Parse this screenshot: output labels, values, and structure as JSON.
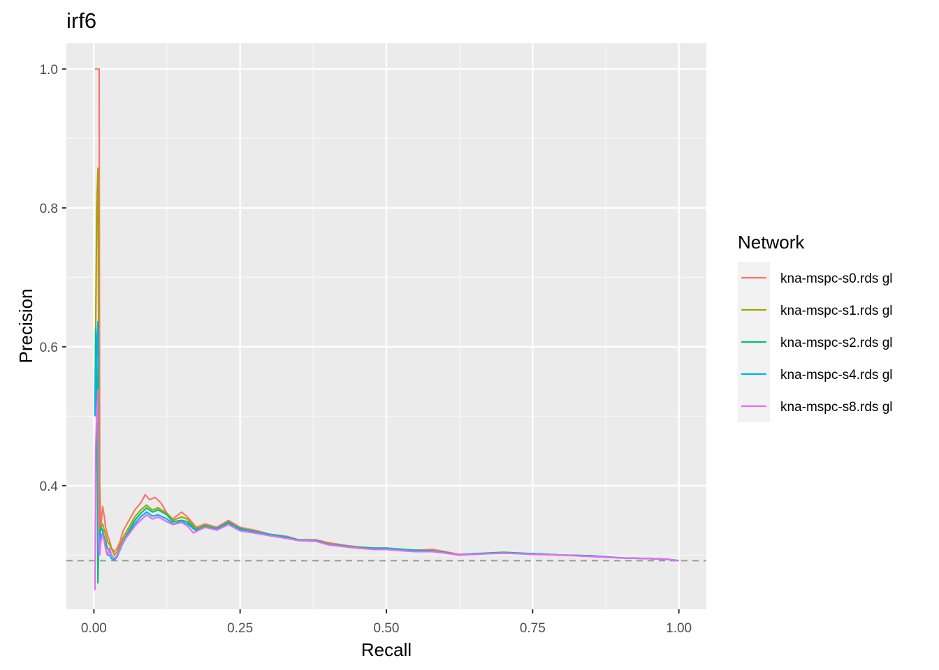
{
  "chart_data": {
    "type": "line",
    "title": "irf6",
    "xlabel": "Recall",
    "ylabel": "Precision",
    "xlim": [
      -0.047,
      1.047
    ],
    "ylim": [
      0.222,
      1.037
    ],
    "x_ticks": [
      0.0,
      0.25,
      0.5,
      0.75,
      1.0
    ],
    "x_tick_labels": [
      "0.00",
      "0.25",
      "0.50",
      "0.75",
      "1.00"
    ],
    "y_ticks": [
      0.4,
      0.6,
      0.8,
      1.0
    ],
    "y_tick_labels": [
      "0.4",
      "0.6",
      "0.8",
      "1.0"
    ],
    "grid": true,
    "legend": {
      "title": "Network",
      "position": "right"
    },
    "baseline": {
      "y": 0.292,
      "style": "dashed",
      "color": "#999999"
    },
    "series": [
      {
        "name": "kna-mspc-s0.rds gl",
        "color": "#F8766D",
        "x": [
          0.002,
          0.003,
          0.005,
          0.007,
          0.009,
          0.01,
          0.012,
          0.015,
          0.018,
          0.02,
          0.023,
          0.027,
          0.03,
          0.035,
          0.04,
          0.045,
          0.05,
          0.06,
          0.07,
          0.08,
          0.088,
          0.095,
          0.105,
          0.115,
          0.125,
          0.135,
          0.15,
          0.16,
          0.175,
          0.19,
          0.21,
          0.23,
          0.25,
          0.28,
          0.3,
          0.33,
          0.35,
          0.38,
          0.4,
          0.43,
          0.45,
          0.48,
          0.5,
          0.53,
          0.55,
          0.58,
          0.6,
          0.625,
          0.65,
          0.7,
          0.75,
          0.8,
          0.85,
          0.9,
          0.95,
          0.98,
          1.0
        ],
        "y": [
          1.0,
          1.0,
          1.0,
          1.0,
          1.0,
          0.4,
          0.34,
          0.37,
          0.355,
          0.34,
          0.33,
          0.32,
          0.31,
          0.305,
          0.31,
          0.32,
          0.335,
          0.35,
          0.365,
          0.375,
          0.387,
          0.38,
          0.383,
          0.375,
          0.36,
          0.352,
          0.362,
          0.355,
          0.34,
          0.345,
          0.34,
          0.35,
          0.34,
          0.335,
          0.33,
          0.327,
          0.322,
          0.322,
          0.318,
          0.314,
          0.312,
          0.31,
          0.31,
          0.308,
          0.307,
          0.308,
          0.305,
          0.301,
          0.302,
          0.303,
          0.302,
          0.3,
          0.299,
          0.296,
          0.295,
          0.294,
          0.292
        ]
      },
      {
        "name": "kna-mspc-s1.rds gl",
        "color": "#A3A500",
        "x": [
          0.002,
          0.003,
          0.005,
          0.007,
          0.008,
          0.01,
          0.012,
          0.015,
          0.018,
          0.02,
          0.023,
          0.027,
          0.03,
          0.035,
          0.04,
          0.045,
          0.05,
          0.06,
          0.07,
          0.08,
          0.09,
          0.1,
          0.11,
          0.125,
          0.135,
          0.15,
          0.16,
          0.175,
          0.19,
          0.21,
          0.23,
          0.25,
          0.28,
          0.3,
          0.33,
          0.35,
          0.38,
          0.4,
          0.43,
          0.45,
          0.48,
          0.5,
          0.53,
          0.55,
          0.58,
          0.6,
          0.625,
          0.65,
          0.7,
          0.75,
          0.8,
          0.85,
          0.9,
          0.95,
          0.98,
          1.0
        ],
        "y": [
          0.5,
          0.62,
          0.8,
          0.857,
          0.62,
          0.33,
          0.34,
          0.345,
          0.335,
          0.33,
          0.32,
          0.315,
          0.31,
          0.3,
          0.305,
          0.315,
          0.325,
          0.34,
          0.355,
          0.365,
          0.372,
          0.365,
          0.368,
          0.36,
          0.35,
          0.355,
          0.352,
          0.338,
          0.343,
          0.338,
          0.348,
          0.338,
          0.333,
          0.33,
          0.325,
          0.322,
          0.32,
          0.316,
          0.313,
          0.311,
          0.309,
          0.309,
          0.307,
          0.306,
          0.306,
          0.304,
          0.3,
          0.302,
          0.303,
          0.302,
          0.3,
          0.299,
          0.296,
          0.295,
          0.294,
          0.292
        ]
      },
      {
        "name": "kna-mspc-s2.rds gl",
        "color": "#00BF7D",
        "x": [
          0.002,
          0.003,
          0.005,
          0.007,
          0.008,
          0.01,
          0.012,
          0.015,
          0.018,
          0.02,
          0.023,
          0.027,
          0.03,
          0.035,
          0.04,
          0.045,
          0.05,
          0.06,
          0.07,
          0.08,
          0.09,
          0.1,
          0.11,
          0.125,
          0.135,
          0.15,
          0.16,
          0.175,
          0.19,
          0.21,
          0.23,
          0.25,
          0.28,
          0.3,
          0.33,
          0.35,
          0.38,
          0.4,
          0.43,
          0.45,
          0.48,
          0.5,
          0.53,
          0.55,
          0.58,
          0.6,
          0.625,
          0.65,
          0.7,
          0.75,
          0.8,
          0.85,
          0.9,
          0.95,
          0.98,
          1.0
        ],
        "y": [
          0.5,
          0.625,
          0.55,
          0.26,
          0.32,
          0.33,
          0.34,
          0.335,
          0.325,
          0.32,
          0.31,
          0.305,
          0.3,
          0.295,
          0.3,
          0.31,
          0.32,
          0.335,
          0.35,
          0.36,
          0.368,
          0.362,
          0.365,
          0.358,
          0.348,
          0.35,
          0.348,
          0.336,
          0.342,
          0.338,
          0.347,
          0.338,
          0.333,
          0.33,
          0.326,
          0.322,
          0.321,
          0.316,
          0.313,
          0.311,
          0.31,
          0.31,
          0.308,
          0.307,
          0.306,
          0.304,
          0.3,
          0.302,
          0.304,
          0.302,
          0.3,
          0.299,
          0.296,
          0.295,
          0.294,
          0.292
        ]
      },
      {
        "name": "kna-mspc-s4.rds gl",
        "color": "#00B0F6",
        "x": [
          0.002,
          0.003,
          0.005,
          0.007,
          0.008,
          0.01,
          0.012,
          0.015,
          0.018,
          0.02,
          0.023,
          0.027,
          0.03,
          0.035,
          0.04,
          0.045,
          0.05,
          0.06,
          0.07,
          0.08,
          0.09,
          0.1,
          0.11,
          0.125,
          0.135,
          0.15,
          0.16,
          0.175,
          0.19,
          0.21,
          0.23,
          0.25,
          0.28,
          0.3,
          0.33,
          0.35,
          0.38,
          0.4,
          0.43,
          0.45,
          0.48,
          0.5,
          0.53,
          0.55,
          0.58,
          0.6,
          0.625,
          0.65,
          0.7,
          0.75,
          0.8,
          0.85,
          0.9,
          0.95,
          0.98,
          1.0
        ],
        "y": [
          0.5,
          0.55,
          0.6,
          0.636,
          0.3,
          0.32,
          0.33,
          0.33,
          0.32,
          0.31,
          0.3,
          0.3,
          0.295,
          0.293,
          0.298,
          0.308,
          0.318,
          0.332,
          0.345,
          0.355,
          0.362,
          0.356,
          0.358,
          0.352,
          0.345,
          0.348,
          0.345,
          0.335,
          0.34,
          0.337,
          0.345,
          0.336,
          0.332,
          0.329,
          0.325,
          0.321,
          0.32,
          0.315,
          0.312,
          0.31,
          0.309,
          0.309,
          0.307,
          0.306,
          0.305,
          0.303,
          0.3,
          0.302,
          0.303,
          0.302,
          0.3,
          0.299,
          0.296,
          0.295,
          0.294,
          0.292
        ]
      },
      {
        "name": "kna-mspc-s8.rds gl",
        "color": "#E76BF3",
        "x": [
          0.002,
          0.003,
          0.005,
          0.007,
          0.008,
          0.01,
          0.012,
          0.015,
          0.018,
          0.02,
          0.023,
          0.027,
          0.03,
          0.035,
          0.04,
          0.045,
          0.05,
          0.06,
          0.07,
          0.08,
          0.09,
          0.1,
          0.11,
          0.125,
          0.135,
          0.15,
          0.16,
          0.17,
          0.19,
          0.21,
          0.23,
          0.25,
          0.28,
          0.3,
          0.33,
          0.35,
          0.38,
          0.4,
          0.43,
          0.45,
          0.48,
          0.5,
          0.53,
          0.55,
          0.58,
          0.6,
          0.625,
          0.65,
          0.7,
          0.75,
          0.8,
          0.85,
          0.9,
          0.95,
          0.98,
          1.0
        ],
        "y": [
          0.25,
          0.45,
          0.5,
          0.538,
          0.33,
          0.3,
          0.32,
          0.33,
          0.32,
          0.31,
          0.3,
          0.31,
          0.3,
          0.295,
          0.3,
          0.31,
          0.32,
          0.33,
          0.342,
          0.35,
          0.358,
          0.352,
          0.355,
          0.348,
          0.344,
          0.347,
          0.342,
          0.332,
          0.34,
          0.336,
          0.344,
          0.335,
          0.331,
          0.328,
          0.324,
          0.321,
          0.32,
          0.315,
          0.312,
          0.31,
          0.308,
          0.308,
          0.306,
          0.305,
          0.305,
          0.303,
          0.3,
          0.301,
          0.303,
          0.301,
          0.3,
          0.298,
          0.296,
          0.295,
          0.294,
          0.292
        ]
      }
    ]
  }
}
